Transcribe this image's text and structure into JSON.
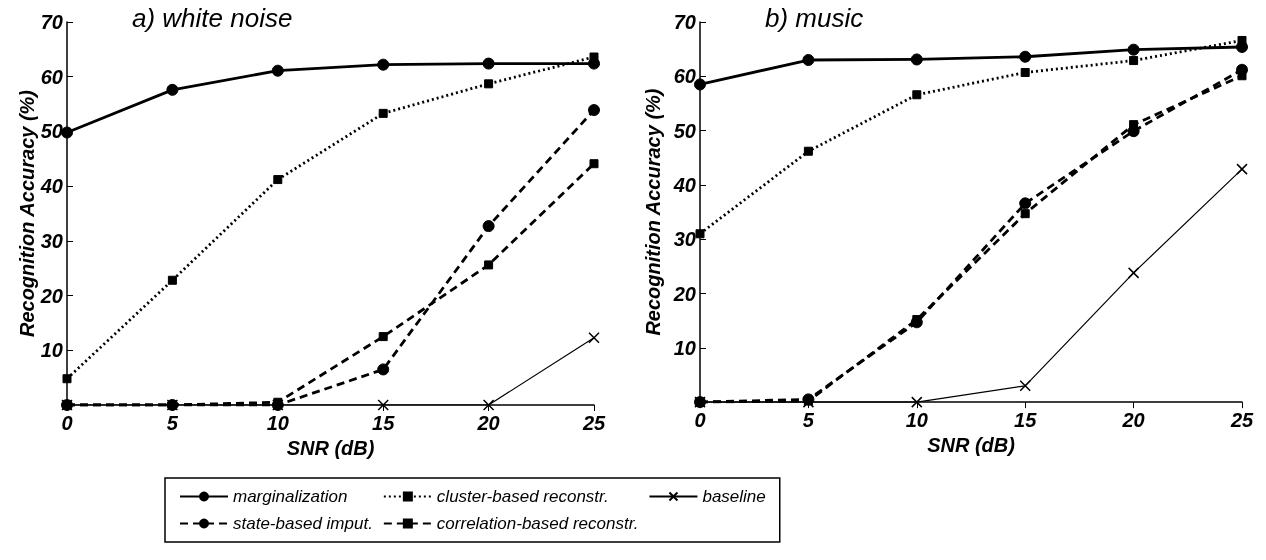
{
  "chart_data": [
    {
      "type": "line",
      "title": "a) white noise",
      "xlabel": "SNR (dB)",
      "ylabel": "Recognition Accuracy (%)",
      "x": [
        0,
        5,
        10,
        15,
        20,
        25
      ],
      "xlim": [
        0,
        25
      ],
      "xticks": [
        0,
        5,
        10,
        15,
        20,
        25
      ],
      "ylim": [
        0,
        70
      ],
      "yticks": [
        {
          "value": 0,
          "label": null
        },
        10,
        20,
        30,
        40,
        50,
        60,
        70
      ],
      "grid": false,
      "legend": "bottom",
      "series": [
        {
          "name": "marginalization",
          "color": "#000000",
          "marker": "circle",
          "line_style": "solid",
          "values": [
            49.8,
            57.6,
            61.1,
            62.2,
            62.4,
            62.4
          ]
        },
        {
          "name": "state-based imput.",
          "color": "#000000",
          "marker": "circle",
          "line_style": "dashed",
          "values": [
            0,
            0,
            0,
            6.5,
            32.7,
            53.9
          ]
        },
        {
          "name": "cluster-based reconstr.",
          "color": "#000000",
          "marker": "square",
          "line_style": "dotted",
          "values": [
            4.8,
            22.8,
            41.2,
            53.3,
            58.7,
            63.6
          ]
        },
        {
          "name": "correlation-based reconstr.",
          "color": "#000000",
          "marker": "square",
          "line_style": "dashed",
          "values": [
            0,
            0,
            0.5,
            12.5,
            25.6,
            44.1
          ]
        },
        {
          "name": "baseline",
          "color": "#000000",
          "marker": "cross",
          "line_style": "solid",
          "values": [
            0,
            0,
            0,
            0,
            0,
            12.3
          ]
        }
      ]
    },
    {
      "type": "line",
      "title": "b) music",
      "xlabel": "SNR (dB)",
      "ylabel": "Recognition Accuracy (%)",
      "x": [
        0,
        5,
        10,
        15,
        20,
        25
      ],
      "xlim": [
        0,
        25
      ],
      "xticks": [
        0,
        5,
        10,
        15,
        20,
        25
      ],
      "ylim": [
        0,
        70
      ],
      "yticks": [
        {
          "value": 0,
          "label": null
        },
        10,
        20,
        30,
        40,
        50,
        60,
        70
      ],
      "grid": false,
      "series": [
        {
          "color": "#000000",
          "marker": "circle",
          "line_style": "solid",
          "values": [
            58.5,
            63.0,
            63.1,
            63.6,
            64.9,
            65.4
          ]
        },
        {
          "color": "#000000",
          "marker": "circle",
          "line_style": "dashed",
          "values": [
            0,
            0.5,
            14.7,
            36.6,
            49.9,
            61.2
          ]
        },
        {
          "color": "#000000",
          "marker": "square",
          "line_style": "dotted",
          "values": [
            31.0,
            46.2,
            56.6,
            60.7,
            62.9,
            66.6
          ]
        },
        {
          "color": "#000000",
          "marker": "square",
          "line_style": "dashed",
          "values": [
            0,
            0.2,
            15.2,
            34.7,
            51.1,
            60.1
          ]
        },
        {
          "color": "#000000",
          "marker": "cross",
          "line_style": "solid",
          "values": [
            0,
            0,
            0,
            3.0,
            23.8,
            42.9
          ]
        }
      ]
    }
  ]
}
